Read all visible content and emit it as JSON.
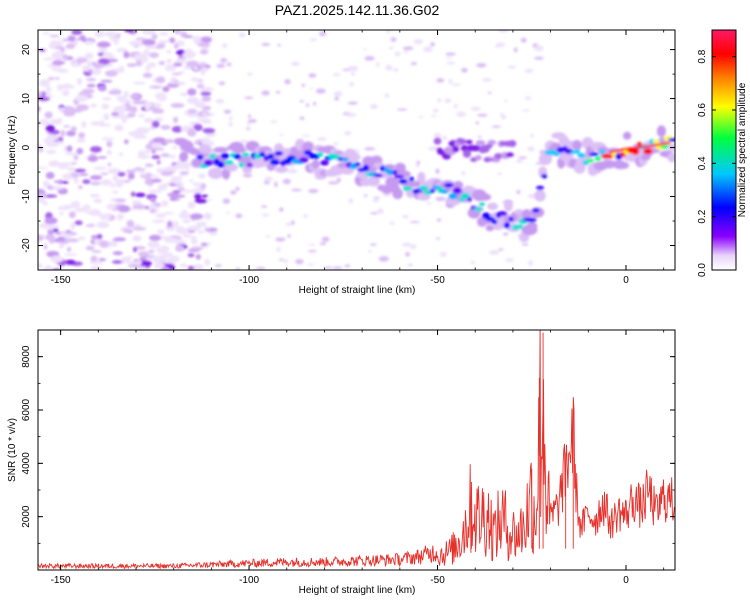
{
  "figure": {
    "title": "PAZ1.2025.142.11.36.G02"
  },
  "chart_data": [
    {
      "type": "heatmap",
      "title": "PAZ1.2025.142.11.36.G02",
      "xlabel": "Height of straight line (km)",
      "ylabel": "Frequency (Hz)",
      "xlim": [
        -156,
        13
      ],
      "ylim": [
        -25,
        24
      ],
      "x_ticks": [
        -150,
        -100,
        -50,
        0
      ],
      "y_ticks": [
        20,
        10,
        0,
        -10,
        -20
      ],
      "colorbar": {
        "label": "Normalized spectral amplitude",
        "range": [
          0.0,
          0.9
        ],
        "ticks": [
          0.0,
          0.2,
          0.4,
          0.6,
          0.8
        ],
        "colormap": [
          "#ffffff",
          "#e0c8f8",
          "#7b00ff",
          "#0000ff",
          "#00c8ff",
          "#00ff80",
          "#ffff00",
          "#ff0000",
          "#ff1a66"
        ]
      },
      "ridge": {
        "description_points_x": [
          -115,
          -100,
          -85,
          -70,
          -55,
          -45,
          -35,
          -25,
          -20,
          -10,
          0,
          10,
          13
        ],
        "description_points_y": [
          -3,
          -2.5,
          -2,
          -4,
          -8,
          -9,
          -14,
          -16,
          0,
          -2,
          -0.5,
          0.5,
          1
        ]
      }
    },
    {
      "type": "line",
      "xlabel": "Height of straight line (km)",
      "ylabel": "SNR (10 * v/v)",
      "xlim": [
        -156,
        13
      ],
      "ylim": [
        0,
        9000
      ],
      "x_ticks": [
        -150,
        -100,
        -50,
        0
      ],
      "y_ticks": [
        2000,
        4000,
        6000,
        8000
      ],
      "series": [
        {
          "color": "#e8302b",
          "x": [
            -156,
            -140,
            -120,
            -110,
            -100,
            -90,
            -80,
            -70,
            -60,
            -55,
            -50,
            -47,
            -45,
            -43,
            -41,
            -39,
            -37,
            -35,
            -33,
            -31,
            -29,
            -27,
            -25,
            -24,
            -23,
            -22,
            -21,
            -20,
            -18,
            -16,
            -14,
            -13,
            -12,
            -10,
            -8,
            -6,
            -4,
            -2,
            0,
            2,
            4,
            6,
            8,
            10,
            13
          ],
          "y": [
            150,
            150,
            150,
            200,
            250,
            300,
            300,
            350,
            400,
            500,
            700,
            900,
            1200,
            2000,
            3200,
            2500,
            2900,
            1800,
            2600,
            2000,
            1700,
            2200,
            3800,
            2500,
            7200,
            8900,
            3500,
            2300,
            2800,
            4400,
            6000,
            3000,
            1800,
            2500,
            2200,
            3000,
            2000,
            2600,
            2400,
            3200,
            2700,
            3500,
            2500,
            3200,
            3000
          ]
        }
      ]
    }
  ]
}
